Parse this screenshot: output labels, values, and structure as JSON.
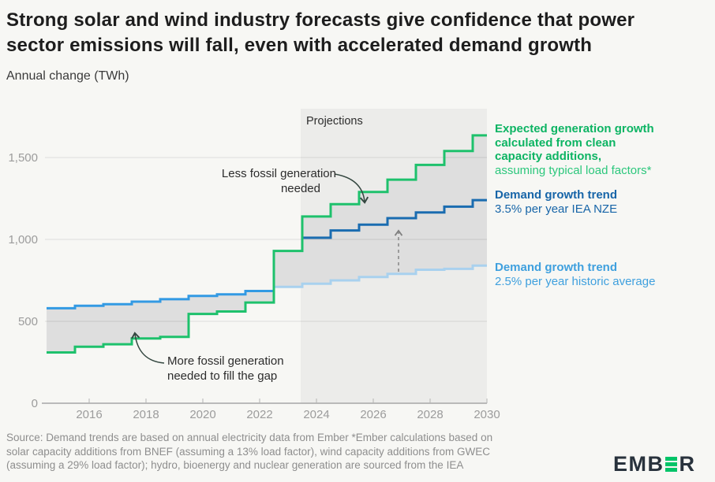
{
  "header": {
    "title": "Strong solar and wind industry forecasts give confidence that power sector emissions will fall, even with accelerated demand growth",
    "subtitle": "Annual change (TWh)"
  },
  "chart_data": {
    "type": "line",
    "style": "step",
    "title": "Strong solar and wind industry forecasts give confidence that power sector emissions will fall, even with accelerated demand growth",
    "ylabel": "Annual change (TWh)",
    "ylim": [
      0,
      1800
    ],
    "grid": "horizontal",
    "legend_position": "right",
    "projection_start_year": 2023.5,
    "projections_label": "Projections",
    "x_ticks": [
      2016,
      2018,
      2020,
      2022,
      2024,
      2026,
      2028,
      2030
    ],
    "y_ticks": [
      {
        "v": 0,
        "label": "0"
      },
      {
        "v": 500,
        "label": "500"
      },
      {
        "v": 1000,
        "label": "1,000"
      },
      {
        "v": 1500,
        "label": "1,500"
      }
    ],
    "series": [
      {
        "name": "expected-clean-generation-growth",
        "color": "#1ec16c",
        "years": [
          2015,
          2016,
          2017,
          2018,
          2019,
          2020,
          2021,
          2022,
          2023,
          2024,
          2025,
          2026,
          2027,
          2028,
          2029,
          2030
        ],
        "values": [
          310,
          345,
          360,
          395,
          405,
          545,
          560,
          615,
          930,
          1140,
          1215,
          1290,
          1365,
          1455,
          1540,
          1635
        ]
      },
      {
        "name": "demand-trend-historic",
        "color": "#339ae3",
        "years": [
          2015,
          2016,
          2017,
          2018,
          2019,
          2020,
          2021,
          2022
        ],
        "values": [
          580,
          595,
          605,
          620,
          635,
          655,
          665,
          685
        ]
      },
      {
        "name": "demand-trend-3p5-iea-nze",
        "color": "#1a6cb0",
        "years": [
          2024,
          2025,
          2026,
          2027,
          2028,
          2029,
          2030
        ],
        "values": [
          1010,
          1055,
          1090,
          1130,
          1165,
          1200,
          1240
        ]
      },
      {
        "name": "demand-trend-2p5-historic-avg",
        "color": "#a9d1ee",
        "years": [
          2023,
          2024,
          2025,
          2026,
          2027,
          2028,
          2029,
          2030
        ],
        "values": [
          710,
          730,
          750,
          770,
          790,
          815,
          820,
          840
        ]
      }
    ],
    "colors": {
      "background": "#f7f7f4",
      "projection_band": "#ececea",
      "gap_fill": "#dedede",
      "axis": "#a6a6a6",
      "gridline": "rgba(0,0,0,0.10)",
      "tick_text": "#9c9c9c"
    }
  },
  "legend": {
    "clean": {
      "bold": [
        "Expected generation growth",
        "calculated from clean",
        "capacity additions,"
      ],
      "regular": "assuming typical load factors*",
      "color_bold": "#0db463",
      "color_regular": "#2cc77c"
    },
    "nze": {
      "bold": "Demand growth trend",
      "regular": "3.5% per year IEA NZE",
      "color": "#1765a8"
    },
    "hist": {
      "bold": "Demand growth trend",
      "regular": "2.5% per year historic average",
      "color": "#3fa0de"
    }
  },
  "annotations": {
    "projections": "Projections",
    "less_fossil": {
      "line1": "Less fossil generation",
      "line2": "needed"
    },
    "more_fossil": {
      "line1": "More fossil generation",
      "line2": "needed to fill the gap"
    }
  },
  "source": {
    "lines": [
      "Source: Demand trends are based on annual electricity data from Ember *Ember calculations based on",
      "solar capacity additions from BNEF (assuming a 13% load factor), wind capacity additions from GWEC",
      "(assuming a 29% load factor); hydro, bioenergy and nuclear generation are sourced from the IEA"
    ]
  },
  "logo": {
    "part1": "EMB",
    "part2": "R",
    "bar_color": "#00c468"
  }
}
